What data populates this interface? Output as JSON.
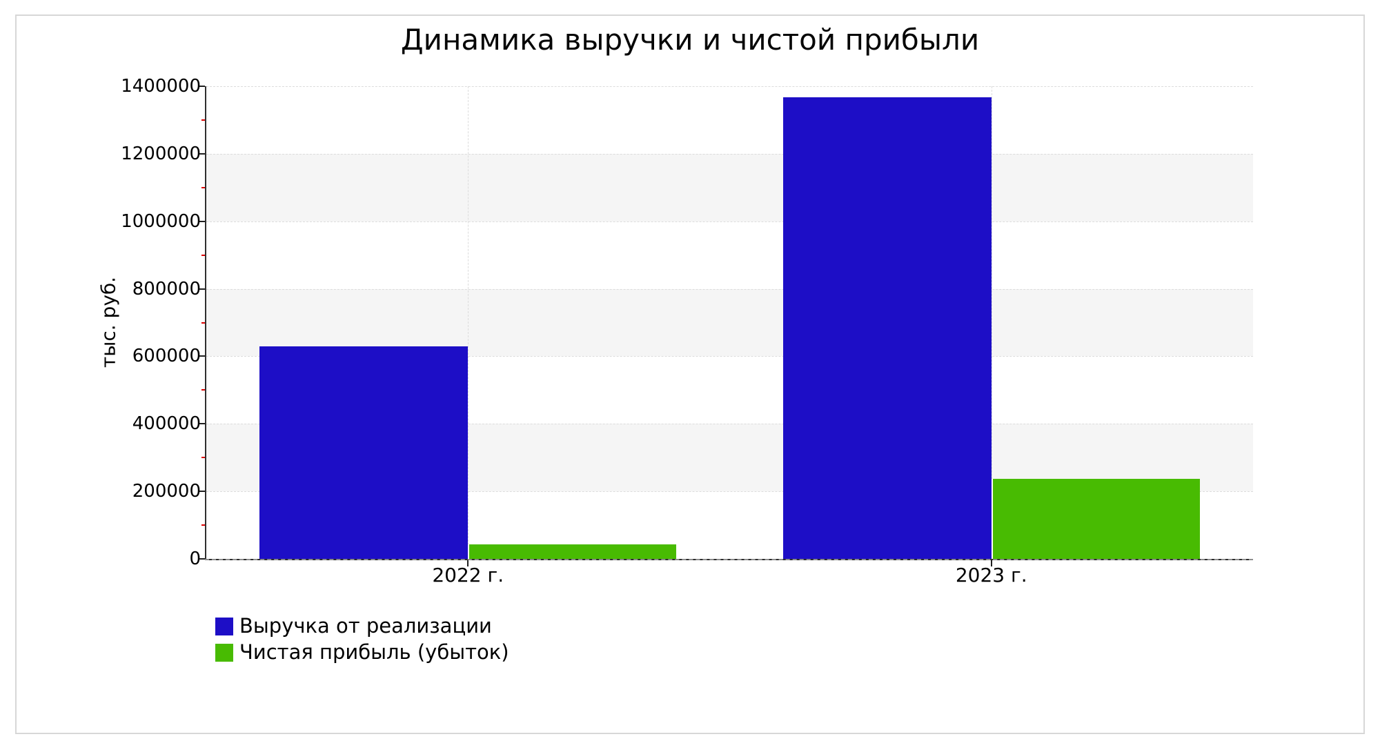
{
  "page": {
    "background": "#ffffff",
    "card_border_color": "#d7d7d7"
  },
  "chart_data": {
    "type": "bar",
    "title": "Динамика выручки и чистой прибыли",
    "ylabel": "тыс. руб.",
    "categories": [
      "2022 г.",
      "2023 г."
    ],
    "series": [
      {
        "name": "Выручка от реализации",
        "color": "#1d0ec6",
        "values": [
          630000,
          1367000
        ]
      },
      {
        "name": "Чистая прибыль (убыток)",
        "color": "#48bb02",
        "values": [
          42000,
          237000
        ]
      }
    ],
    "ylim": [
      0,
      1400000
    ],
    "ytick_step": 200000,
    "yticks": [
      0,
      200000,
      400000,
      600000,
      800000,
      1000000,
      1200000,
      1400000
    ],
    "minor_ytick_step": 100000,
    "minor_ytick_color": "#dd0000",
    "grid": {
      "horizontal": "dashed",
      "vertical_at_category_centers": "dashed",
      "grid_color": "#dcdcdc",
      "band_colors": [
        "#ffffff",
        "#f5f5f5"
      ]
    },
    "axis_color": "#2e2e2e",
    "legend_position": "bottom-left",
    "bar_width_fraction": 0.199
  }
}
